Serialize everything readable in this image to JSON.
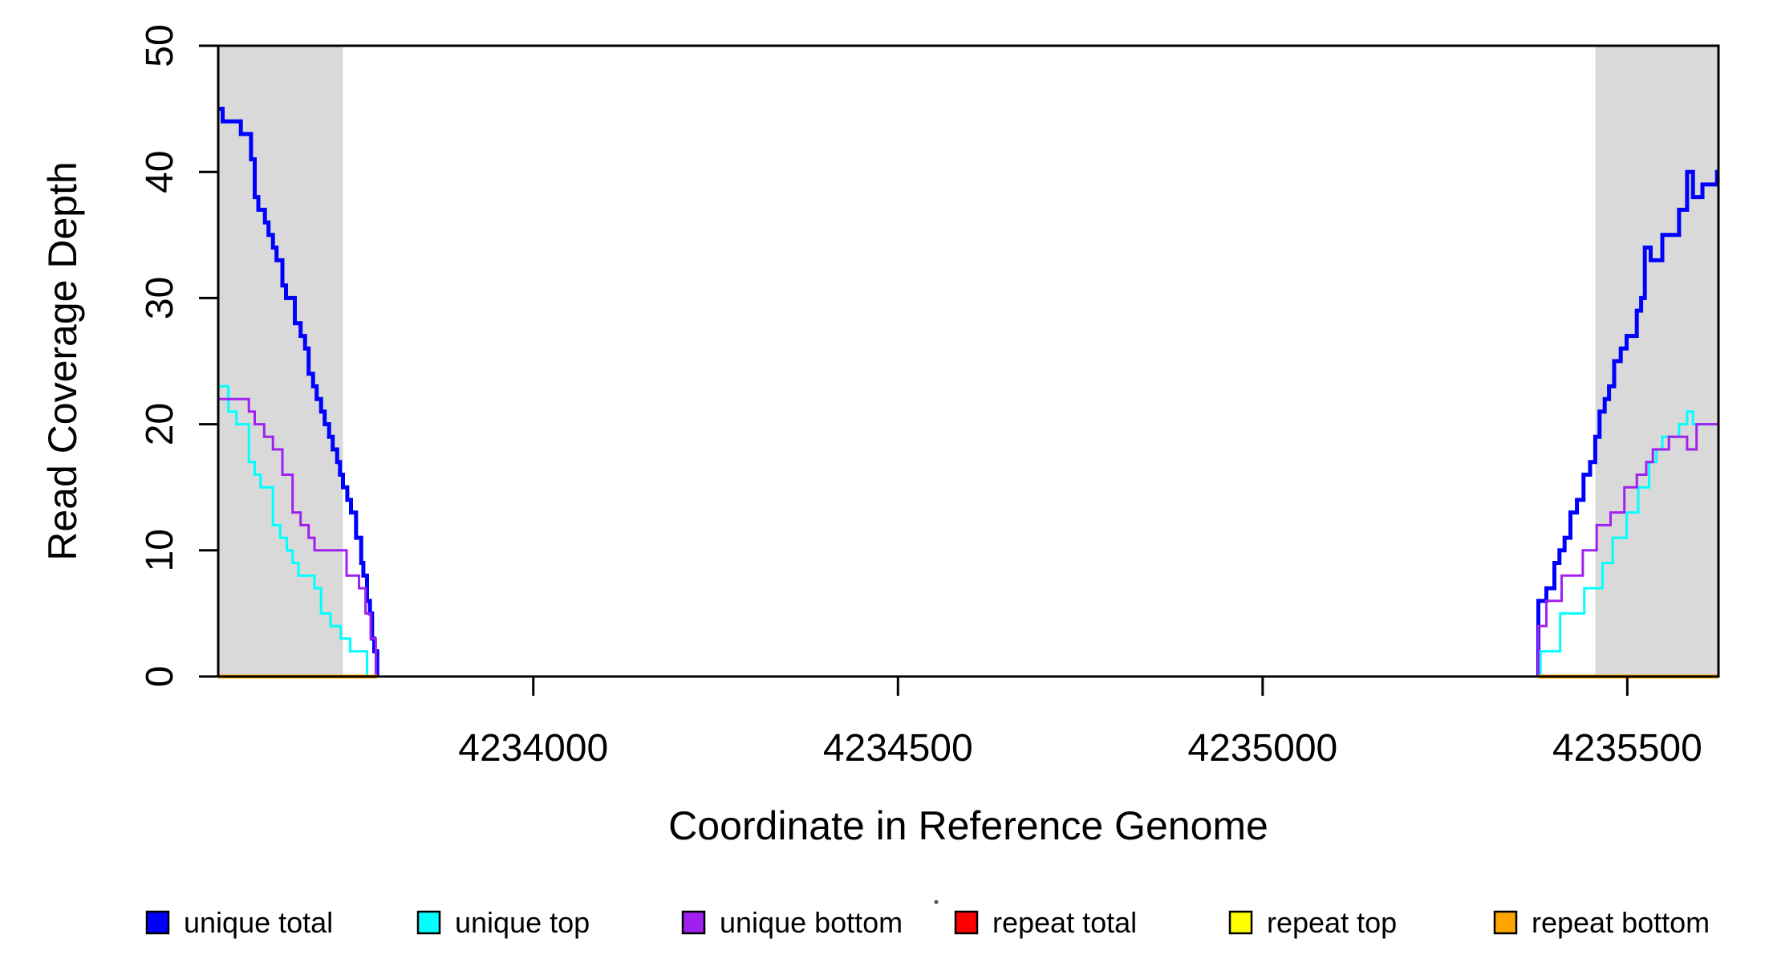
{
  "figure": {
    "background": "#ffffff",
    "plot_border_color": "#000000"
  },
  "chart_data": {
    "type": "line",
    "subtype": "step-coverage-plot",
    "title": "",
    "xlabel": "Coordinate in Reference Genome",
    "ylabel": "Read Coverage Depth",
    "xlim": [
      4233568,
      4235625
    ],
    "ylim": [
      0,
      50
    ],
    "x_ticks": [
      4234000,
      4234500,
      4235000,
      4235500
    ],
    "y_ticks": [
      0,
      10,
      20,
      30,
      40,
      50
    ],
    "grid": false,
    "legend_position": "bottom",
    "highlight_regions": [
      {
        "name": "repeat-region-left",
        "x0": 4233568,
        "x1": 4233739,
        "color": "#d9d9d9"
      },
      {
        "name": "repeat-region-right",
        "x0": 4235456,
        "x1": 4235625,
        "color": "#d9d9d9"
      }
    ],
    "series": [
      {
        "name": "repeat total",
        "color": "#ff0000",
        "width": 3,
        "z": 0,
        "segments": [
          [
            [
              4233568,
              0
            ],
            [
              4235625,
              0
            ]
          ]
        ]
      },
      {
        "name": "repeat top",
        "color": "#ffff00",
        "width": 3,
        "z": 1,
        "segments": [
          [
            [
              4233568,
              0
            ],
            [
              4235625,
              0
            ]
          ]
        ]
      },
      {
        "name": "unique total",
        "color": "#0000ff",
        "width": 5,
        "z": 2,
        "segments": [
          [
            [
              4233568,
              45
            ],
            [
              4233574,
              44
            ],
            [
              4233599,
              43
            ],
            [
              4233613,
              41
            ],
            [
              4233618,
              38
            ],
            [
              4233623,
              37
            ],
            [
              4233632,
              36
            ],
            [
              4233637,
              35
            ],
            [
              4233643,
              34
            ],
            [
              4233648,
              33
            ],
            [
              4233656,
              31
            ],
            [
              4233661,
              30
            ],
            [
              4233673,
              28
            ],
            [
              4233681,
              27
            ],
            [
              4233687,
              26
            ],
            [
              4233692,
              24
            ],
            [
              4233698,
              23
            ],
            [
              4233703,
              22
            ],
            [
              4233709,
              21
            ],
            [
              4233714,
              20
            ],
            [
              4233720,
              19
            ],
            [
              4233725,
              18
            ],
            [
              4233731,
              17
            ],
            [
              4233735,
              16
            ],
            [
              4233739,
              15
            ],
            [
              4233745,
              14
            ],
            [
              4233750,
              13
            ],
            [
              4233757,
              11
            ],
            [
              4233764,
              9
            ],
            [
              4233767,
              8
            ],
            [
              4233772,
              6
            ],
            [
              4233776,
              5
            ],
            [
              4233779,
              3
            ],
            [
              4233782,
              2
            ],
            [
              4233786,
              0
            ]
          ],
          [
            [
              4235378,
              0
            ],
            [
              4235378,
              6
            ],
            [
              4235389,
              7
            ],
            [
              4235400,
              9
            ],
            [
              4235407,
              10
            ],
            [
              4235414,
              11
            ],
            [
              4235422,
              13
            ],
            [
              4235431,
              14
            ],
            [
              4235440,
              16
            ],
            [
              4235449,
              17
            ],
            [
              4235456,
              19
            ],
            [
              4235462,
              21
            ],
            [
              4235469,
              22
            ],
            [
              4235475,
              23
            ],
            [
              4235482,
              25
            ],
            [
              4235491,
              26
            ],
            [
              4235499,
              27
            ],
            [
              4235513,
              29
            ],
            [
              4235519,
              30
            ],
            [
              4235524,
              34
            ],
            [
              4235532,
              33
            ],
            [
              4235548,
              35
            ],
            [
              4235571,
              37
            ],
            [
              4235582,
              40
            ],
            [
              4235590,
              38
            ],
            [
              4235603,
              39
            ],
            [
              4235623,
              40
            ],
            [
              4235625,
              40
            ]
          ]
        ]
      },
      {
        "name": "unique top",
        "color": "#00ffff",
        "width": 3,
        "z": 3,
        "segments": [
          [
            [
              4233568,
              23
            ],
            [
              4233582,
              21
            ],
            [
              4233593,
              20
            ],
            [
              4233610,
              17
            ],
            [
              4233618,
              16
            ],
            [
              4233626,
              15
            ],
            [
              4233643,
              12
            ],
            [
              4233653,
              11
            ],
            [
              4233662,
              10
            ],
            [
              4233670,
              9
            ],
            [
              4233678,
              8
            ],
            [
              4233700,
              7
            ],
            [
              4233709,
              5
            ],
            [
              4233722,
              4
            ],
            [
              4233736,
              3
            ],
            [
              4233749,
              2
            ],
            [
              4233772,
              0
            ]
          ],
          [
            [
              4235381,
              0
            ],
            [
              4235381,
              2
            ],
            [
              4235408,
              5
            ],
            [
              4235441,
              7
            ],
            [
              4235466,
              9
            ],
            [
              4235480,
              11
            ],
            [
              4235499,
              13
            ],
            [
              4235515,
              15
            ],
            [
              4235530,
              17
            ],
            [
              4235540,
              18
            ],
            [
              4235548,
              19
            ],
            [
              4235571,
              20
            ],
            [
              4235582,
              21
            ],
            [
              4235590,
              20
            ],
            [
              4235625,
              20
            ]
          ]
        ]
      },
      {
        "name": "unique bottom",
        "color": "#a020f0",
        "width": 3,
        "z": 4,
        "segments": [
          [
            [
              4233568,
              22
            ],
            [
              4233610,
              21
            ],
            [
              4233618,
              20
            ],
            [
              4233631,
              19
            ],
            [
              4233643,
              18
            ],
            [
              4233656,
              16
            ],
            [
              4233670,
              13
            ],
            [
              4233681,
              12
            ],
            [
              4233692,
              11
            ],
            [
              4233700,
              10
            ],
            [
              4233744,
              8
            ],
            [
              4233761,
              7
            ],
            [
              4233770,
              5
            ],
            [
              4233777,
              3
            ],
            [
              4233784,
              0
            ],
            [
              4235378,
              4
            ],
            [
              4235389,
              6
            ],
            [
              4235410,
              8
            ],
            [
              4235439,
              10
            ],
            [
              4235458,
              12
            ],
            [
              4235477,
              13
            ],
            [
              4235496,
              15
            ],
            [
              4235513,
              16
            ],
            [
              4235526,
              17
            ],
            [
              4235535,
              18
            ],
            [
              4235557,
              19
            ],
            [
              4235582,
              18
            ],
            [
              4235595,
              20
            ],
            [
              4235625,
              20
            ]
          ]
        ]
      },
      {
        "name": "repeat bottom",
        "color": "#ffa500",
        "width": 5,
        "z": 5,
        "segments": [
          [
            [
              4233568,
              0
            ],
            [
              4233786,
              0
            ]
          ],
          [
            [
              4235378,
              0
            ],
            [
              4235625,
              0
            ]
          ]
        ]
      }
    ]
  },
  "legend": {
    "labels": [
      "unique total",
      "unique top",
      "unique bottom",
      "repeat total",
      "repeat top",
      "repeat bottom"
    ],
    "colors": [
      "#0000ff",
      "#00ffff",
      "#a020f0",
      "#ff0000",
      "#ffff00",
      "#ffa500"
    ]
  },
  "artifact": {
    "dot_color": "#555555"
  }
}
